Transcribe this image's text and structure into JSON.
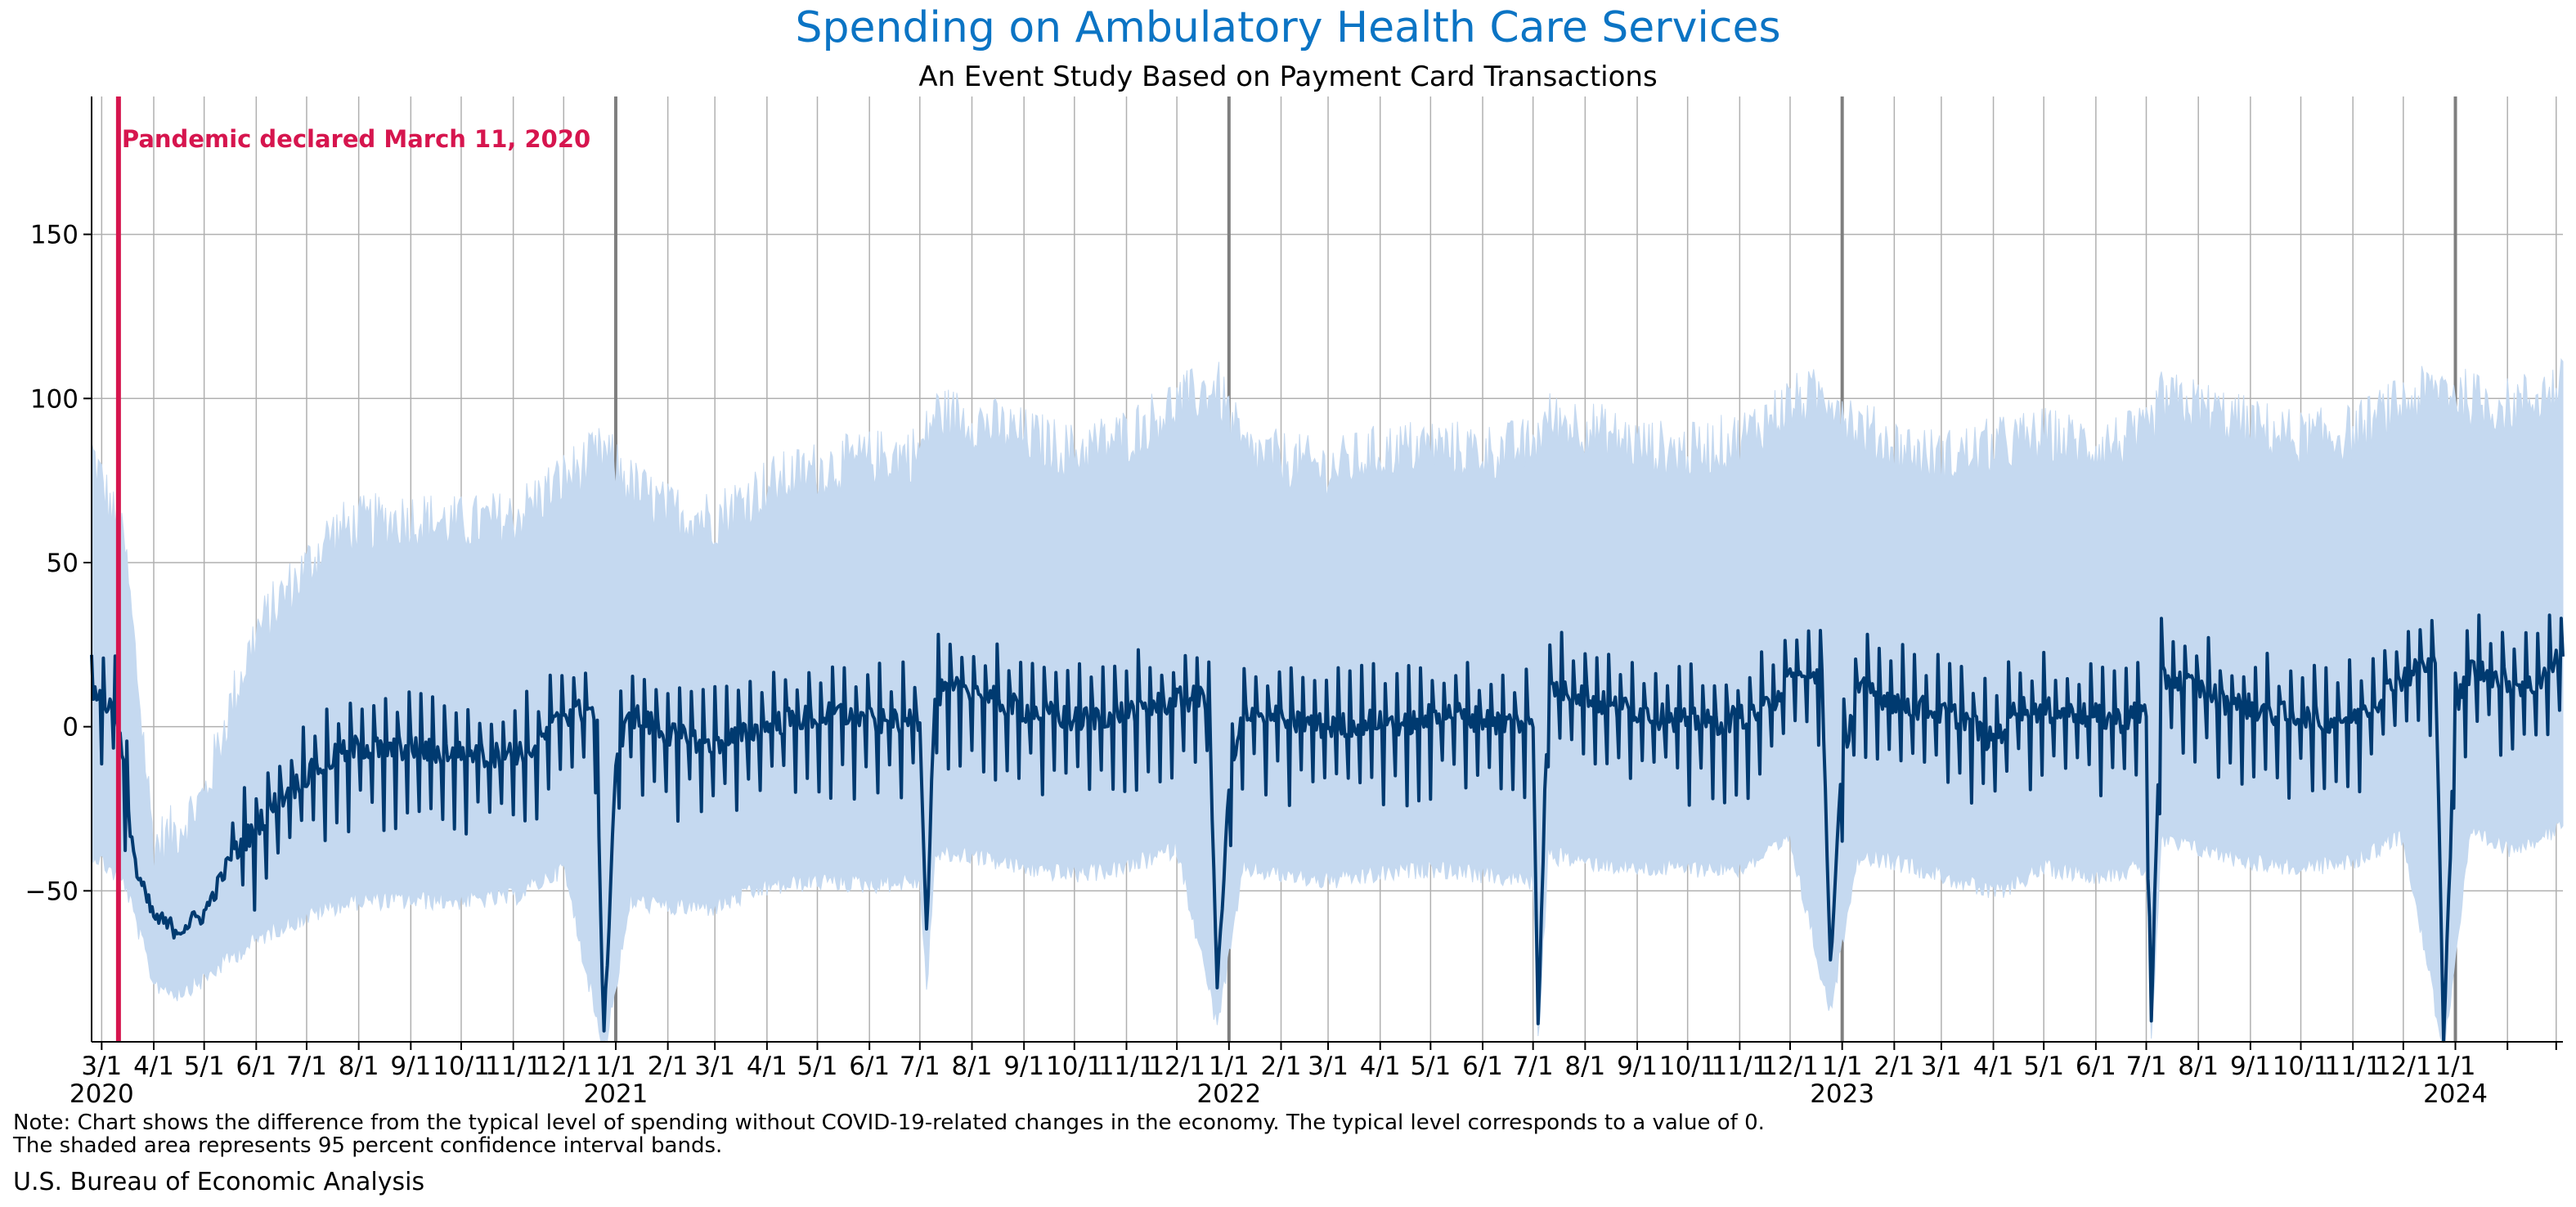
{
  "chart_data": {
    "type": "line",
    "title": "Spending on Ambulatory Health Care Services",
    "subtitle": "An Event Study Based on Payment Card Transactions",
    "xlabel": "",
    "ylabel": "",
    "x_range": [
      "2020-02-24",
      "2024-03-05"
    ],
    "ylim": [
      -96,
      192
    ],
    "yticks": [
      -50,
      0,
      50,
      100,
      150
    ],
    "grid": true,
    "colors": {
      "title": "#0b74c4",
      "line": "#003a70",
      "band": "#c5d9f0",
      "event": "#d6154e",
      "grid": "#b0b0b0",
      "year_line": "#7f7f7f"
    },
    "event": {
      "date": "2020-03-11",
      "label": "Pandemic declared March 11, 2020"
    },
    "x_tick_labels": [
      "3/1",
      "4/1",
      "5/1",
      "6/1",
      "7/1",
      "8/1",
      "9/1",
      "10/1",
      "11/1",
      "12/1",
      "1/1",
      "2/1",
      "3/1",
      "4/1",
      "5/1",
      "6/1",
      "7/1",
      "8/1",
      "9/1",
      "10/1",
      "11/1",
      "12/1",
      "1/1",
      "2/1",
      "3/1",
      "4/1",
      "5/1",
      "6/1",
      "7/1",
      "8/1",
      "9/1",
      "10/1",
      "11/1",
      "12/1",
      "1/1",
      "2/1",
      "3/1",
      "4/1",
      "5/1",
      "6/1",
      "7/1",
      "8/1",
      "9/1",
      "10/1",
      "11/1",
      "12/1",
      "1/1"
    ],
    "year_labels": [
      "2020",
      "2021",
      "2022",
      "2023",
      "2024"
    ],
    "series": [
      {
        "name": "",
        "type": "line",
        "points": [
          [
            "2020-02-24",
            12
          ],
          [
            "2020-03-01",
            8
          ],
          [
            "2020-03-10",
            5
          ],
          [
            "2020-03-15",
            -18
          ],
          [
            "2020-03-22",
            -45
          ],
          [
            "2020-04-01",
            -58
          ],
          [
            "2020-04-15",
            -62
          ],
          [
            "2020-05-01",
            -57
          ],
          [
            "2020-05-15",
            -42
          ],
          [
            "2020-06-01",
            -30
          ],
          [
            "2020-06-15",
            -22
          ],
          [
            "2020-07-01",
            -15
          ],
          [
            "2020-07-15",
            -10
          ],
          [
            "2020-08-01",
            -6
          ],
          [
            "2020-08-15",
            -7
          ],
          [
            "2020-09-01",
            -6
          ],
          [
            "2020-09-15",
            -8
          ],
          [
            "2020-10-01",
            -7
          ],
          [
            "2020-10-15",
            -9
          ],
          [
            "2020-11-01",
            -8
          ],
          [
            "2020-11-15",
            -6
          ],
          [
            "2020-12-01",
            4
          ],
          [
            "2020-12-20",
            5
          ],
          [
            "2020-12-25",
            -95
          ],
          [
            "2021-01-01",
            -10
          ],
          [
            "2021-01-10",
            4
          ],
          [
            "2021-02-01",
            -2
          ],
          [
            "2021-02-15",
            -4
          ],
          [
            "2021-03-01",
            -5
          ],
          [
            "2021-03-15",
            -3
          ],
          [
            "2021-04-01",
            0
          ],
          [
            "2021-04-15",
            2
          ],
          [
            "2021-05-01",
            3
          ],
          [
            "2021-05-15",
            4
          ],
          [
            "2021-06-01",
            2
          ],
          [
            "2021-06-15",
            1
          ],
          [
            "2021-07-01",
            3
          ],
          [
            "2021-07-05",
            -63
          ],
          [
            "2021-07-10",
            10
          ],
          [
            "2021-08-01",
            12
          ],
          [
            "2021-08-15",
            8
          ],
          [
            "2021-09-01",
            5
          ],
          [
            "2021-09-15",
            4
          ],
          [
            "2021-10-01",
            2
          ],
          [
            "2021-10-15",
            3
          ],
          [
            "2021-11-01",
            5
          ],
          [
            "2021-11-15",
            6
          ],
          [
            "2021-12-01",
            8
          ],
          [
            "2021-12-20",
            9
          ],
          [
            "2021-12-25",
            -80
          ],
          [
            "2022-01-01",
            -20
          ],
          [
            "2022-01-10",
            5
          ],
          [
            "2022-02-01",
            2
          ],
          [
            "2022-02-15",
            1
          ],
          [
            "2022-03-01",
            0
          ],
          [
            "2022-03-15",
            1
          ],
          [
            "2022-04-01",
            2
          ],
          [
            "2022-04-15",
            1
          ],
          [
            "2022-05-01",
            3
          ],
          [
            "2022-05-15",
            4
          ],
          [
            "2022-06-01",
            2
          ],
          [
            "2022-06-15",
            1
          ],
          [
            "2022-07-01",
            2
          ],
          [
            "2022-07-04",
            -90
          ],
          [
            "2022-07-10",
            12
          ],
          [
            "2022-08-01",
            10
          ],
          [
            "2022-08-15",
            6
          ],
          [
            "2022-09-01",
            5
          ],
          [
            "2022-09-15",
            3
          ],
          [
            "2022-10-01",
            2
          ],
          [
            "2022-10-15",
            1
          ],
          [
            "2022-11-01",
            3
          ],
          [
            "2022-11-15",
            5
          ],
          [
            "2022-12-01",
            14
          ],
          [
            "2022-12-20",
            15
          ],
          [
            "2022-12-25",
            -72
          ],
          [
            "2023-01-01",
            -10
          ],
          [
            "2023-01-10",
            12
          ],
          [
            "2023-02-01",
            8
          ],
          [
            "2023-02-15",
            6
          ],
          [
            "2023-03-01",
            4
          ],
          [
            "2023-03-15",
            3
          ],
          [
            "2023-04-01",
            -5
          ],
          [
            "2023-04-15",
            6
          ],
          [
            "2023-05-01",
            5
          ],
          [
            "2023-05-15",
            4
          ],
          [
            "2023-06-01",
            3
          ],
          [
            "2023-06-15",
            2
          ],
          [
            "2023-07-01",
            5
          ],
          [
            "2023-07-04",
            -88
          ],
          [
            "2023-07-10",
            15
          ],
          [
            "2023-08-01",
            12
          ],
          [
            "2023-08-15",
            8
          ],
          [
            "2023-09-01",
            6
          ],
          [
            "2023-09-15",
            4
          ],
          [
            "2023-10-01",
            3
          ],
          [
            "2023-10-15",
            2
          ],
          [
            "2023-11-01",
            3
          ],
          [
            "2023-11-15",
            8
          ],
          [
            "2023-12-01",
            15
          ],
          [
            "2023-12-20",
            20
          ],
          [
            "2023-12-25",
            -93
          ],
          [
            "2024-01-01",
            5
          ],
          [
            "2024-01-10",
            18
          ],
          [
            "2024-02-01",
            14
          ],
          [
            "2024-02-15",
            12
          ],
          [
            "2024-03-05",
            22
          ]
        ]
      },
      {
        "name": "",
        "type": "band",
        "band_lower": [
          [
            "2020-02-24",
            -35
          ],
          [
            "2020-03-15",
            -45
          ],
          [
            "2020-04-01",
            -75
          ],
          [
            "2020-04-15",
            -78
          ],
          [
            "2020-05-01",
            -74
          ],
          [
            "2020-05-15",
            -68
          ],
          [
            "2020-06-01",
            -62
          ],
          [
            "2020-06-15",
            -58
          ],
          [
            "2020-07-01",
            -55
          ],
          [
            "2020-07-15",
            -52
          ],
          [
            "2020-08-01",
            -50
          ],
          [
            "2020-09-01",
            -50
          ],
          [
            "2020-10-01",
            -50
          ],
          [
            "2020-11-01",
            -49
          ],
          [
            "2020-12-01",
            -40
          ],
          [
            "2020-12-25",
            -96
          ],
          [
            "2021-01-10",
            -50
          ],
          [
            "2021-02-01",
            -52
          ],
          [
            "2021-03-01",
            -52
          ],
          [
            "2021-04-01",
            -46
          ],
          [
            "2021-05-01",
            -44
          ],
          [
            "2021-06-01",
            -45
          ],
          [
            "2021-07-01",
            -44
          ],
          [
            "2021-07-05",
            -78
          ],
          [
            "2021-07-10",
            -36
          ],
          [
            "2021-08-01",
            -36
          ],
          [
            "2021-09-01",
            -40
          ],
          [
            "2021-10-01",
            -42
          ],
          [
            "2021-11-01",
            -40
          ],
          [
            "2021-12-01",
            -34
          ],
          [
            "2021-12-25",
            -88
          ],
          [
            "2022-01-10",
            -40
          ],
          [
            "2022-02-01",
            -42
          ],
          [
            "2022-03-01",
            -44
          ],
          [
            "2022-04-01",
            -42
          ],
          [
            "2022-05-01",
            -40
          ],
          [
            "2022-06-01",
            -42
          ],
          [
            "2022-07-01",
            -44
          ],
          [
            "2022-07-04",
            -94
          ],
          [
            "2022-07-10",
            -36
          ],
          [
            "2022-08-01",
            -38
          ],
          [
            "2022-09-01",
            -40
          ],
          [
            "2022-10-01",
            -40
          ],
          [
            "2022-11-01",
            -40
          ],
          [
            "2022-12-01",
            -32
          ],
          [
            "2022-12-25",
            -84
          ],
          [
            "2023-01-10",
            -36
          ],
          [
            "2023-02-01",
            -38
          ],
          [
            "2023-03-01",
            -42
          ],
          [
            "2023-04-01",
            -48
          ],
          [
            "2023-05-01",
            -40
          ],
          [
            "2023-06-01",
            -42
          ],
          [
            "2023-07-01",
            -40
          ],
          [
            "2023-07-04",
            -93
          ],
          [
            "2023-07-10",
            -32
          ],
          [
            "2023-08-01",
            -34
          ],
          [
            "2023-09-01",
            -38
          ],
          [
            "2023-10-01",
            -40
          ],
          [
            "2023-11-01",
            -38
          ],
          [
            "2023-12-01",
            -30
          ],
          [
            "2023-12-25",
            -96
          ],
          [
            "2024-01-10",
            -30
          ],
          [
            "2024-02-01",
            -34
          ],
          [
            "2024-03-05",
            -28
          ]
        ],
        "band_upper": [
          [
            "2020-02-24",
            80
          ],
          [
            "2020-03-15",
            50
          ],
          [
            "2020-04-01",
            -40
          ],
          [
            "2020-04-15",
            -35
          ],
          [
            "2020-05-01",
            -25
          ],
          [
            "2020-05-15",
            0
          ],
          [
            "2020-06-01",
            25
          ],
          [
            "2020-06-15",
            35
          ],
          [
            "2020-07-01",
            45
          ],
          [
            "2020-07-15",
            55
          ],
          [
            "2020-08-01",
            58
          ],
          [
            "2020-09-01",
            60
          ],
          [
            "2020-10-01",
            58
          ],
          [
            "2020-11-01",
            60
          ],
          [
            "2020-12-01",
            72
          ],
          [
            "2020-12-25",
            80
          ],
          [
            "2021-01-10",
            70
          ],
          [
            "2021-02-01",
            62
          ],
          [
            "2021-03-01",
            60
          ],
          [
            "2021-04-01",
            70
          ],
          [
            "2021-05-01",
            75
          ],
          [
            "2021-06-01",
            78
          ],
          [
            "2021-07-01",
            80
          ],
          [
            "2021-07-05",
            85
          ],
          [
            "2021-07-10",
            92
          ],
          [
            "2021-08-01",
            90
          ],
          [
            "2021-09-01",
            85
          ],
          [
            "2021-10-01",
            80
          ],
          [
            "2021-11-01",
            85
          ],
          [
            "2021-12-01",
            95
          ],
          [
            "2021-12-25",
            100
          ],
          [
            "2022-01-10",
            80
          ],
          [
            "2022-02-01",
            78
          ],
          [
            "2022-03-01",
            75
          ],
          [
            "2022-04-01",
            80
          ],
          [
            "2022-05-01",
            82
          ],
          [
            "2022-06-01",
            80
          ],
          [
            "2022-07-01",
            82
          ],
          [
            "2022-07-04",
            85
          ],
          [
            "2022-07-10",
            90
          ],
          [
            "2022-08-01",
            88
          ],
          [
            "2022-09-01",
            82
          ],
          [
            "2022-10-01",
            80
          ],
          [
            "2022-11-01",
            84
          ],
          [
            "2022-12-01",
            95
          ],
          [
            "2022-12-25",
            98
          ],
          [
            "2023-01-10",
            88
          ],
          [
            "2023-02-01",
            82
          ],
          [
            "2023-03-01",
            78
          ],
          [
            "2023-04-01",
            82
          ],
          [
            "2023-05-01",
            85
          ],
          [
            "2023-06-01",
            82
          ],
          [
            "2023-07-01",
            85
          ],
          [
            "2023-07-04",
            88
          ],
          [
            "2023-07-10",
            96
          ],
          [
            "2023-08-01",
            94
          ],
          [
            "2023-09-01",
            88
          ],
          [
            "2023-10-01",
            84
          ],
          [
            "2023-11-01",
            86
          ],
          [
            "2023-12-01",
            95
          ],
          [
            "2023-12-25",
            100
          ],
          [
            "2024-01-10",
            96
          ],
          [
            "2024-02-01",
            94
          ],
          [
            "2024-03-05",
            100
          ]
        ]
      }
    ]
  },
  "note_line1": "Note: Chart shows the difference from the typical level of spending without COVID-19-related changes in the economy. The typical level corresponds to a value of 0.",
  "note_line2": "The shaded area represents 95 percent confidence interval bands.",
  "source": "U.S. Bureau of Economic Analysis"
}
